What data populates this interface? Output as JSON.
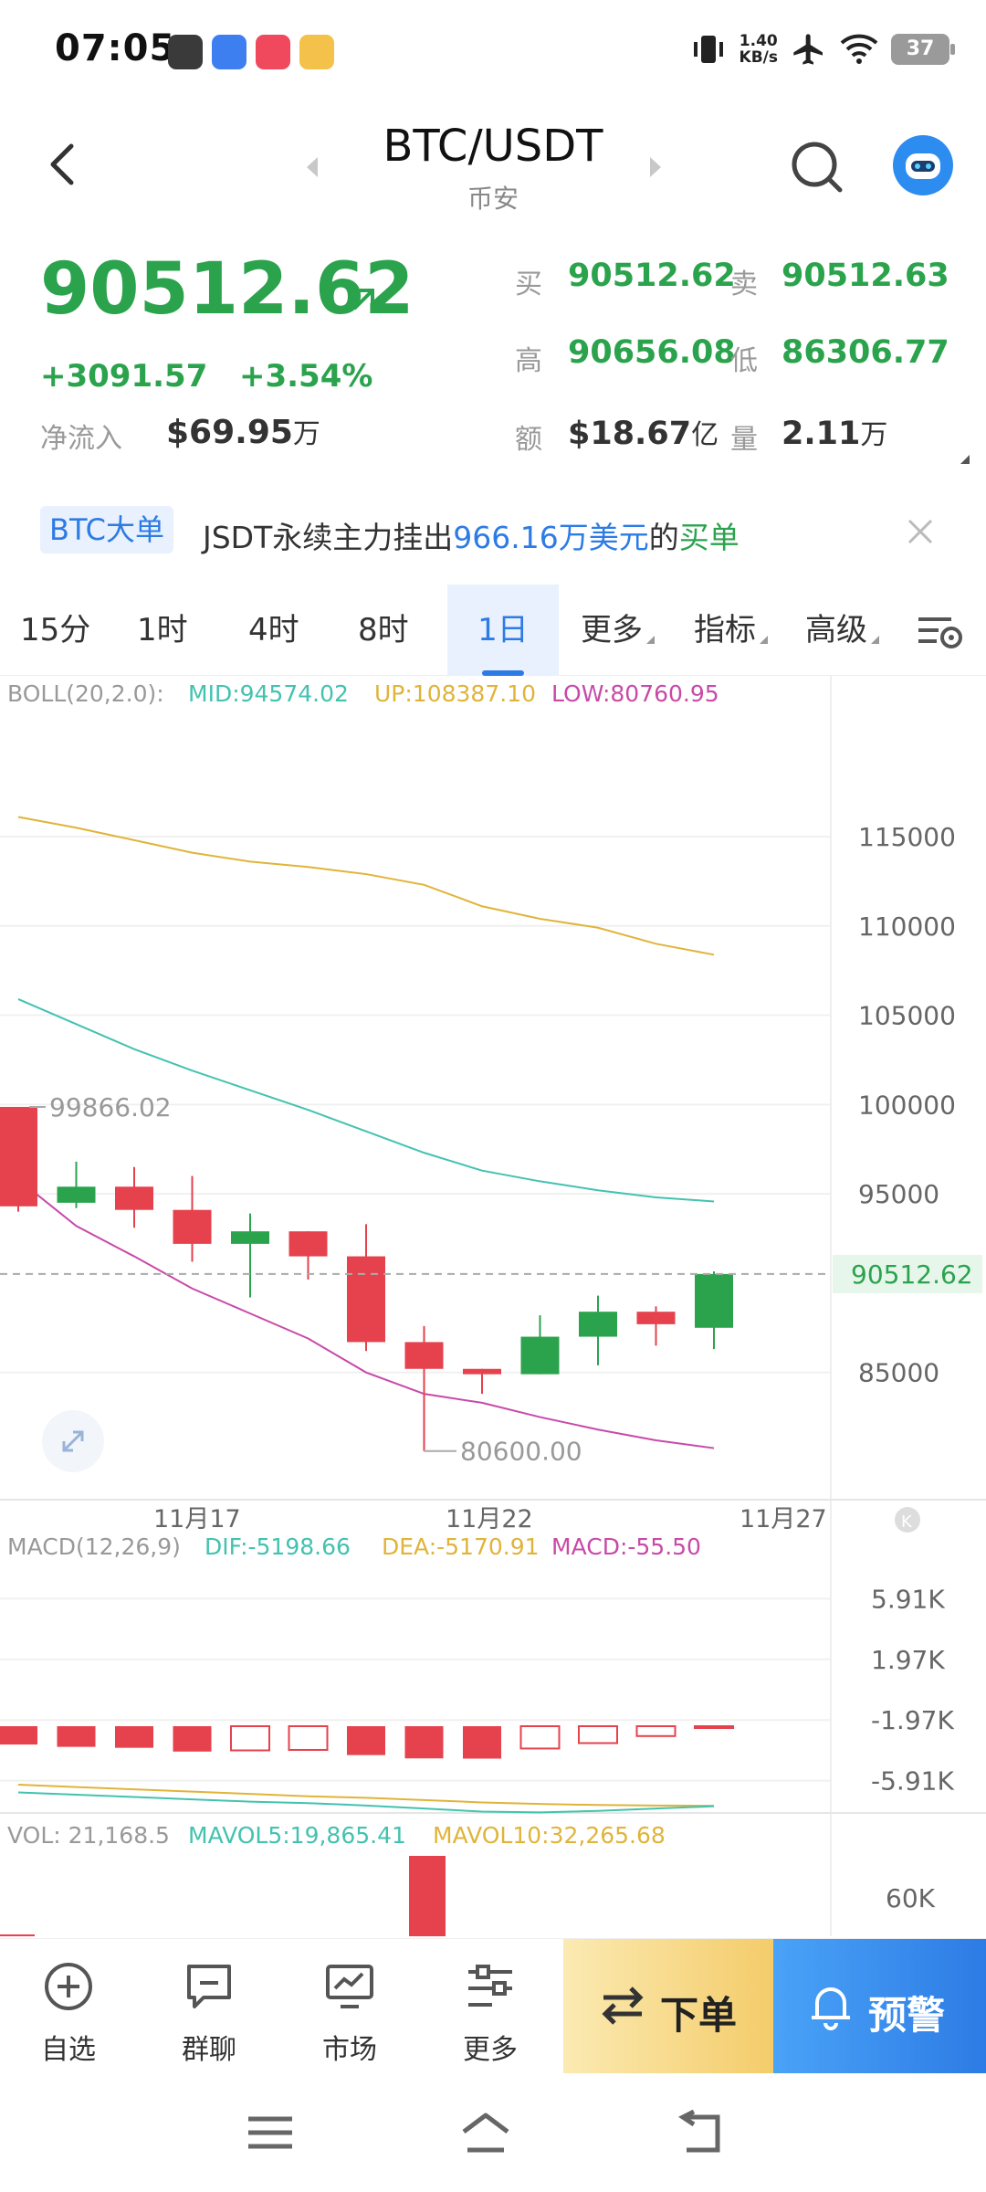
{
  "status_bar": {
    "time": "07:05",
    "net_speed_value": "1.40",
    "net_speed_unit": "KB/s",
    "battery": "37"
  },
  "header": {
    "pair": "BTC/USDT",
    "exchange": "币安"
  },
  "price": {
    "last": "90512.62",
    "change_abs": "+3091.57",
    "change_pct": "+3.54%",
    "netflow_label": "净流入",
    "netflow_value": "$69.95",
    "netflow_unit": "万"
  },
  "stats": {
    "bid_label": "买",
    "bid": "90512.62",
    "ask_label": "卖",
    "ask": "90512.63",
    "high_label": "高",
    "high": "90656.08",
    "low_label": "低",
    "low": "86306.77",
    "amount_label": "额",
    "amount": "$18.67",
    "amount_unit": "亿",
    "volume_label": "量",
    "volume": "2.11",
    "volume_unit": "万"
  },
  "notice": {
    "tag": "BTC大单",
    "text_1": "JSDT永续主力挂出",
    "amount": "966.16万美元",
    "text_2": "的",
    "side": "买单"
  },
  "tabs": [
    {
      "label": "15分"
    },
    {
      "label": "1时"
    },
    {
      "label": "4时"
    },
    {
      "label": "8时"
    },
    {
      "label": "1日",
      "active": true
    },
    {
      "label": "更多"
    },
    {
      "label": "指标"
    },
    {
      "label": "高级"
    }
  ],
  "chart_data": {
    "type": "candlestick",
    "colors": {
      "up": "#2ba34d",
      "down": "#e5424d",
      "boll_mid": "#43c2b0",
      "boll_up": "#e0b43a",
      "boll_low": "#c84aa8",
      "dif": "#43c2b0",
      "dea": "#e0b43a"
    },
    "boll": {
      "label": "BOLL(20,2.0):",
      "mid": "MID:94574.02",
      "up": "UP:108387.10",
      "low": "LOW:80760.95"
    },
    "y_ticks": [
      "115000",
      "110000",
      "105000",
      "100000",
      "95000",
      "85000"
    ],
    "y_tick_values": [
      115000,
      110000,
      105000,
      100000,
      95000,
      85000
    ],
    "ylim": [
      79000,
      124000
    ],
    "x_ticks": [
      "11月17",
      "11月22",
      "11月27"
    ],
    "current_price": "90512.62",
    "high_marker": "99866.02",
    "low_marker": "80600.00",
    "candles": [
      {
        "o": 99866,
        "h": 99866,
        "l": 94000,
        "c": 94300
      },
      {
        "o": 94500,
        "h": 96800,
        "l": 94200,
        "c": 95400
      },
      {
        "o": 95400,
        "h": 96500,
        "l": 93100,
        "c": 94100
      },
      {
        "o": 94100,
        "h": 96000,
        "l": 91200,
        "c": 92200
      },
      {
        "o": 92200,
        "h": 93900,
        "l": 89200,
        "c": 92900
      },
      {
        "o": 92900,
        "h": 92900,
        "l": 90200,
        "c": 91500
      },
      {
        "o": 91500,
        "h": 93300,
        "l": 86200,
        "c": 86700
      },
      {
        "o": 86700,
        "h": 87600,
        "l": 80600,
        "c": 85200
      },
      {
        "o": 85200,
        "h": 85200,
        "l": 83800,
        "c": 84900
      },
      {
        "o": 84900,
        "h": 88200,
        "l": 84900,
        "c": 87000
      },
      {
        "o": 87000,
        "h": 89300,
        "l": 85400,
        "c": 88400
      },
      {
        "o": 88400,
        "h": 88700,
        "l": 86500,
        "c": 87700
      },
      {
        "o": 87500,
        "h": 90656,
        "l": 86306,
        "c": 90512
      }
    ],
    "boll_mid_line": [
      105900,
      104500,
      103100,
      101900,
      100800,
      99700,
      98500,
      97300,
      96300,
      95700,
      95200,
      94800,
      94574
    ],
    "boll_up_line": [
      116100,
      115500,
      114800,
      114100,
      113600,
      113300,
      112900,
      112300,
      111100,
      110400,
      109900,
      109000,
      108387
    ],
    "boll_low_line": [
      95800,
      93200,
      91500,
      89700,
      88300,
      86900,
      85000,
      83800,
      83300,
      82500,
      81800,
      81200,
      80761
    ],
    "macd": {
      "label": "MACD(12,26,9)",
      "dif": "DIF:-5198.66",
      "dea": "DEA:-5170.91",
      "macd": "MACD:-55.50",
      "y_ticks": [
        "5.91K",
        "1.97K",
        "-1.97K",
        "-5.91K"
      ],
      "y_tick_values": [
        5910,
        1970,
        -1970,
        -5910
      ],
      "hist": [
        -780,
        -880,
        -920,
        -1080,
        -1030,
        -1010,
        -1230,
        -1370,
        -1380,
        -950,
        -720,
        -420,
        -55
      ],
      "dif_line": [
        -4300,
        -4450,
        -4600,
        -4750,
        -4900,
        -5000,
        -5150,
        -5350,
        -5550,
        -5600,
        -5500,
        -5350,
        -5199
      ],
      "dea_line": [
        -3800,
        -3950,
        -4100,
        -4250,
        -4400,
        -4550,
        -4650,
        -4800,
        -4950,
        -5050,
        -5120,
        -5150,
        -5171
      ]
    },
    "vol": {
      "label": "VOL: 21,168.5",
      "mavol5": "MAVOL5:19,865.41",
      "mavol10": "MAVOL10:32,265.68",
      "y_tick": "60K"
    }
  },
  "action_bar": {
    "items": [
      {
        "label": "自选",
        "icon": "add-favorite-icon"
      },
      {
        "label": "群聊",
        "icon": "chat-icon"
      },
      {
        "label": "市场",
        "icon": "market-icon"
      },
      {
        "label": "更多",
        "icon": "more-icon"
      }
    ],
    "order_label": "下单",
    "alert_label": "预警"
  }
}
